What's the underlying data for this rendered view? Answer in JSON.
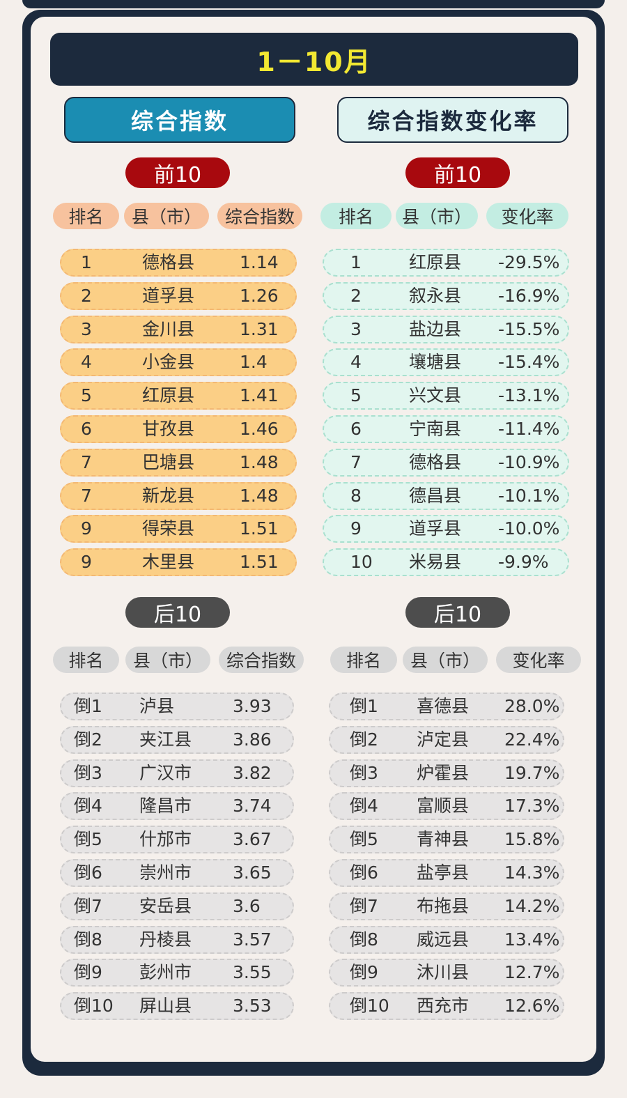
{
  "title": "1－10月",
  "left_header": "综合指数",
  "right_header": "综合指数变化率",
  "top_label": "前10",
  "bottom_label": "后10",
  "colors": {
    "navy": "#1c2a3d",
    "yellow": "#f2e832",
    "blue": "#1b8db2",
    "red_pill": "#a8090e",
    "gray_pill": "#4d4d4d",
    "orange_row": "#fbcf86",
    "mint_row": "#e2f6ef",
    "gray_row": "#e6e4e4"
  },
  "index_columns": [
    "排名",
    "县（市）",
    "综合指数"
  ],
  "rate_columns": [
    "排名",
    "县（市）",
    "变化率"
  ],
  "top_index": [
    [
      "1",
      "德格县",
      "1.14"
    ],
    [
      "2",
      "道孚县",
      "1.26"
    ],
    [
      "3",
      "金川县",
      "1.31"
    ],
    [
      "4",
      "小金县",
      "1.4"
    ],
    [
      "5",
      "红原县",
      "1.41"
    ],
    [
      "6",
      "甘孜县",
      "1.46"
    ],
    [
      "7",
      "巴塘县",
      "1.48"
    ],
    [
      "7",
      "新龙县",
      "1.48"
    ],
    [
      "9",
      "得荣县",
      "1.51"
    ],
    [
      "9",
      "木里县",
      "1.51"
    ]
  ],
  "top_rate": [
    [
      "1",
      "红原县",
      "-29.5%"
    ],
    [
      "2",
      "叙永县",
      "-16.9%"
    ],
    [
      "3",
      "盐边县",
      "-15.5%"
    ],
    [
      "4",
      "壤塘县",
      "-15.4%"
    ],
    [
      "5",
      "兴文县",
      "-13.1%"
    ],
    [
      "6",
      "宁南县",
      "-11.4%"
    ],
    [
      "7",
      "德格县",
      "-10.9%"
    ],
    [
      "8",
      "德昌县",
      "-10.1%"
    ],
    [
      "9",
      "道孚县",
      "-10.0%"
    ],
    [
      "10",
      "米易县",
      "-9.9%"
    ]
  ],
  "bottom_index": [
    [
      "倒1",
      "泸县",
      "3.93"
    ],
    [
      "倒2",
      "夹江县",
      "3.86"
    ],
    [
      "倒3",
      "广汉市",
      "3.82"
    ],
    [
      "倒4",
      "隆昌市",
      "3.74"
    ],
    [
      "倒5",
      "什邡市",
      "3.67"
    ],
    [
      "倒6",
      "崇州市",
      "3.65"
    ],
    [
      "倒7",
      "安岳县",
      "3.6"
    ],
    [
      "倒8",
      "丹棱县",
      "3.57"
    ],
    [
      "倒9",
      "彭州市",
      "3.55"
    ],
    [
      "倒10",
      "屏山县",
      "3.53"
    ]
  ],
  "bottom_rate": [
    [
      "倒1",
      "喜德县",
      "28.0%"
    ],
    [
      "倒2",
      "泸定县",
      "22.4%"
    ],
    [
      "倒3",
      "炉霍县",
      "19.7%"
    ],
    [
      "倒4",
      "富顺县",
      "17.3%"
    ],
    [
      "倒5",
      "青神县",
      "15.8%"
    ],
    [
      "倒6",
      "盐亭县",
      "14.3%"
    ],
    [
      "倒7",
      "布拖县",
      "14.2%"
    ],
    [
      "倒8",
      "威远县",
      "13.4%"
    ],
    [
      "倒9",
      "沐川县",
      "12.7%"
    ],
    [
      "倒10",
      "西充市",
      "12.6%"
    ]
  ]
}
